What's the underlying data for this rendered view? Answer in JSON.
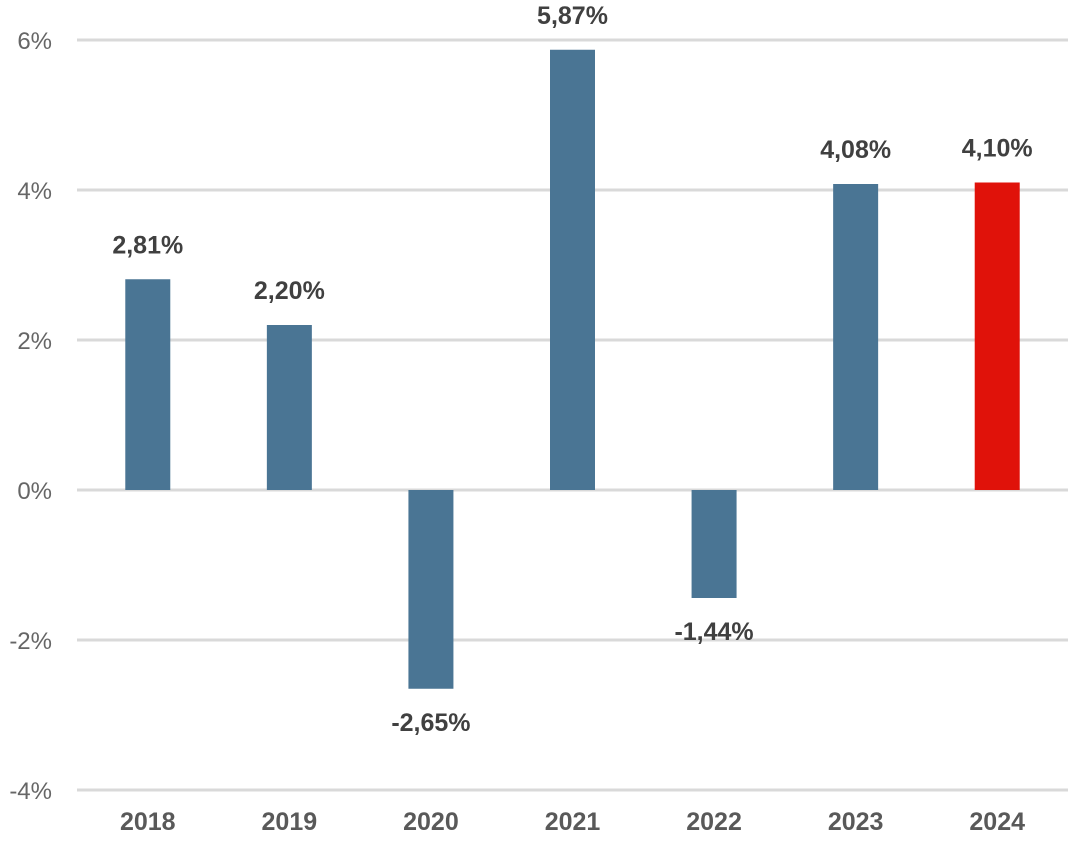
{
  "chart_data": {
    "type": "bar",
    "categories": [
      "2018",
      "2019",
      "2020",
      "2021",
      "2022",
      "2023",
      "2024"
    ],
    "values": [
      2.81,
      2.2,
      -2.65,
      5.87,
      -1.44,
      4.08,
      4.1
    ],
    "data_labels": [
      "2,81%",
      "2,20%",
      "-2,65%",
      "5,87%",
      "-1,44%",
      "4,08%",
      "4,10%"
    ],
    "y_ticks": [
      {
        "value": 6,
        "label": "6%"
      },
      {
        "value": 4,
        "label": "4%"
      },
      {
        "value": 2,
        "label": "2%"
      },
      {
        "value": 0,
        "label": "0%"
      },
      {
        "value": -2,
        "label": "-2%"
      },
      {
        "value": -4,
        "label": "-4%"
      }
    ],
    "ylim": [
      -4,
      6
    ],
    "grid": true,
    "title": "",
    "xlabel": "",
    "ylabel": "",
    "colors": {
      "bar": "#4a7594",
      "highlight": "#e0120a",
      "highlight_category": "2024"
    }
  }
}
